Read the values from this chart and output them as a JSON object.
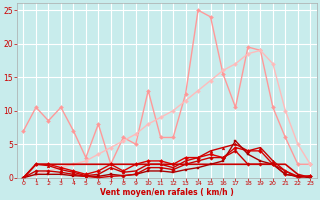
{
  "bg_color": "#c8ecec",
  "grid_color": "#ffffff",
  "xlabel": "Vent moyen/en rafales ( km/h )",
  "xlabel_color": "#cc0000",
  "tick_color": "#cc0000",
  "xlim": [
    -0.5,
    23.5
  ],
  "ylim": [
    0,
    26
  ],
  "yticks": [
    0,
    5,
    10,
    15,
    20,
    25
  ],
  "xticks": [
    0,
    1,
    2,
    3,
    4,
    5,
    6,
    7,
    8,
    9,
    10,
    11,
    12,
    13,
    14,
    15,
    16,
    17,
    18,
    19,
    20,
    21,
    22,
    23
  ],
  "series": [
    {
      "x": [
        0,
        1,
        2,
        3,
        4,
        5,
        6,
        7,
        8,
        9,
        10,
        11,
        12,
        13,
        14,
        15,
        16,
        17,
        18,
        19,
        20,
        21,
        22,
        23
      ],
      "y": [
        7,
        10.5,
        8.5,
        10.5,
        7,
        3,
        8,
        2,
        6,
        5,
        13,
        6,
        6,
        12.5,
        25,
        24,
        15.5,
        10.5,
        19.5,
        19,
        10.5,
        6,
        2,
        2
      ],
      "color": "#ff9999",
      "lw": 1.0,
      "marker": "D",
      "ms": 2.0
    },
    {
      "x": [
        0,
        1,
        2,
        3,
        4,
        5,
        6,
        7,
        8,
        9,
        10,
        11,
        12,
        13,
        14,
        15,
        16,
        17,
        18,
        19,
        20,
        21,
        22,
        23
      ],
      "y": [
        0,
        0.5,
        1,
        1.5,
        2,
        2.5,
        3.5,
        4.5,
        5.5,
        6.5,
        8,
        9,
        10,
        11.5,
        13,
        14.5,
        16,
        17,
        18.5,
        19,
        17,
        10,
        5,
        2
      ],
      "color": "#ffbbbb",
      "lw": 1.0,
      "marker": "D",
      "ms": 2.0
    },
    {
      "x": [
        0,
        1,
        2,
        3,
        4,
        5,
        6,
        7,
        8,
        9,
        10,
        11,
        12,
        13,
        14,
        15,
        16,
        17,
        18,
        19,
        20,
        21,
        22,
        23
      ],
      "y": [
        0,
        2,
        2,
        1.5,
        1,
        0.5,
        1,
        2,
        1,
        2,
        2.5,
        2.5,
        2,
        3,
        3,
        3.5,
        3,
        4.5,
        4,
        4,
        2,
        0.5,
        0.2,
        0.2
      ],
      "color": "#dd0000",
      "lw": 1.0,
      "marker": "D",
      "ms": 2.0
    },
    {
      "x": [
        0,
        1,
        2,
        3,
        4,
        5,
        6,
        7,
        8,
        9,
        10,
        11,
        12,
        13,
        14,
        15,
        16,
        17,
        18,
        19,
        20,
        21,
        22,
        23
      ],
      "y": [
        0,
        2,
        1.8,
        1.2,
        0.8,
        0.3,
        0.5,
        1.5,
        0.8,
        1,
        2,
        2,
        1.5,
        2.5,
        3,
        4,
        4.5,
        5,
        4,
        4.5,
        2.5,
        1,
        0.2,
        0.2
      ],
      "color": "#cc0000",
      "lw": 1.0,
      "marker": "^",
      "ms": 2.0
    },
    {
      "x": [
        0,
        1,
        2,
        3,
        4,
        5,
        6,
        7,
        8,
        9,
        10,
        11,
        12,
        13,
        14,
        15,
        16,
        17,
        18,
        19,
        20,
        21,
        22,
        23
      ],
      "y": [
        0,
        2,
        2,
        2,
        2,
        2,
        2,
        2,
        2,
        2,
        2,
        2,
        2,
        2,
        2,
        2,
        2,
        2,
        2,
        2,
        2,
        2,
        0.5,
        0
      ],
      "color": "#cc0000",
      "lw": 1.2,
      "marker": null,
      "ms": 0
    },
    {
      "x": [
        0,
        1,
        2,
        3,
        4,
        5,
        6,
        7,
        8,
        9,
        10,
        11,
        12,
        13,
        14,
        15,
        16,
        17,
        18,
        19,
        20,
        21,
        22,
        23
      ],
      "y": [
        0,
        0.5,
        0.5,
        0.5,
        0.3,
        0.2,
        0.2,
        0.5,
        0.3,
        0.5,
        1,
        1,
        0.8,
        1.2,
        1.5,
        2,
        2.5,
        5.5,
        3.5,
        2.5,
        2,
        0.5,
        0.2,
        0
      ],
      "color": "#aa0000",
      "lw": 1.0,
      "marker": "s",
      "ms": 1.8
    },
    {
      "x": [
        0,
        1,
        2,
        3,
        4,
        5,
        6,
        7,
        8,
        9,
        10,
        11,
        12,
        13,
        14,
        15,
        16,
        17,
        18,
        19,
        20,
        21,
        22,
        23
      ],
      "y": [
        0,
        1,
        1,
        0.8,
        0.5,
        0.2,
        0,
        0.2,
        0.3,
        0.5,
        1.5,
        1.5,
        1.2,
        2,
        2.5,
        3,
        3,
        4,
        2,
        2,
        2,
        1,
        0,
        0.3
      ],
      "color": "#cc0000",
      "lw": 1.0,
      "marker": "D",
      "ms": 1.8
    }
  ]
}
